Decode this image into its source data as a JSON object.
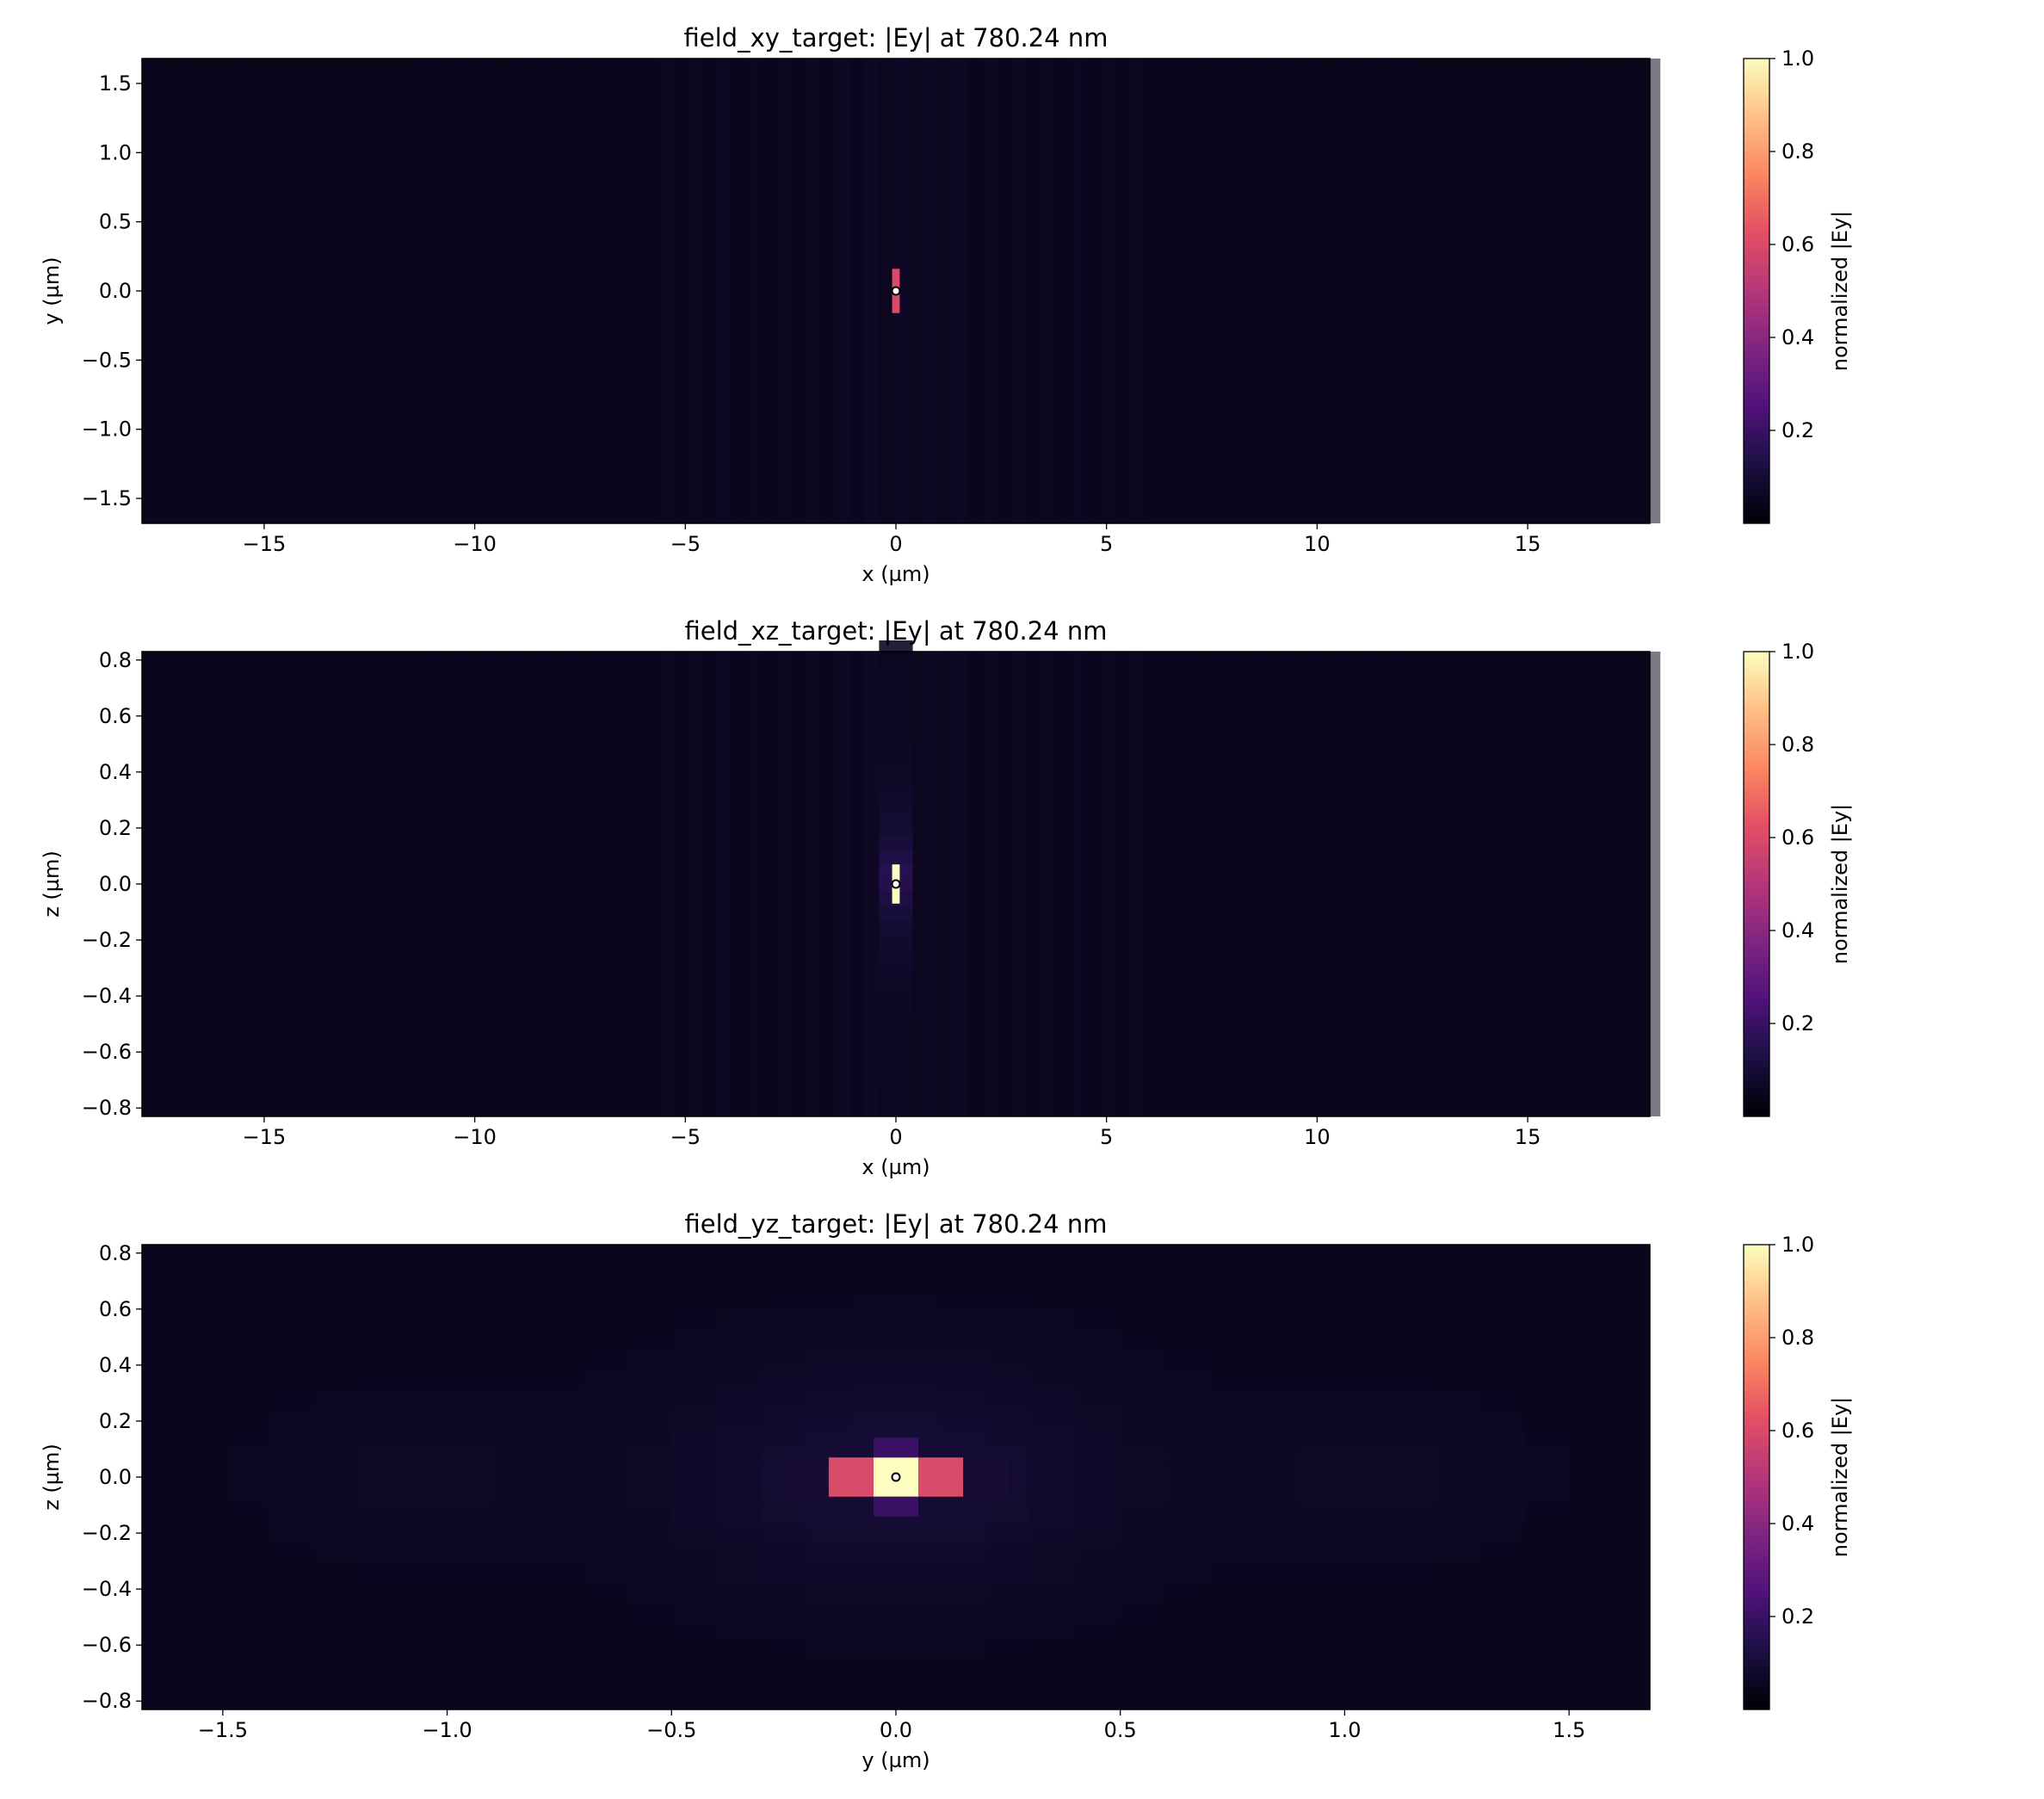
{
  "chart_data": [
    {
      "type": "heatmap",
      "title": "field_xy_target: |Ey| at 780.24 nm",
      "xlabel": "x (µm)",
      "ylabel": "y (µm)",
      "xlim": [
        -17.9,
        17.9
      ],
      "ylim": [
        -1.68,
        1.68
      ],
      "xticks": [
        -15,
        -10,
        -5,
        0,
        5,
        10,
        15
      ],
      "xtick_labels": [
        "−15",
        "−10",
        "−5",
        "0",
        "5",
        "10",
        "15"
      ],
      "yticks": [
        -1.5,
        -1.0,
        -0.5,
        0.0,
        0.5,
        1.0,
        1.5
      ],
      "ytick_labels": [
        "−1.5",
        "−1.0",
        "−0.5",
        "0.0",
        "0.5",
        "1.0",
        "1.5"
      ],
      "colorbar": {
        "label": "normalized |Ey|",
        "range": [
          0,
          1.0
        ],
        "ticks": [
          0.2,
          0.4,
          0.6,
          0.8,
          1.0
        ],
        "tick_labels": [
          "0.2",
          "0.4",
          "0.6",
          "0.8",
          "1.0"
        ]
      },
      "colormap": "magma",
      "marker": {
        "x": 0,
        "y": 0
      },
      "peak": {
        "x": 0,
        "y": 0,
        "value": 0.6,
        "x_halfwidth": 0.09,
        "y_halfwidth": 0.16
      },
      "background_level": 0.05
    },
    {
      "type": "heatmap",
      "title": "field_xz_target: |Ey| at 780.24 nm",
      "xlabel": "x (µm)",
      "ylabel": "z (µm)",
      "xlim": [
        -17.9,
        17.9
      ],
      "ylim": [
        -0.83,
        0.83
      ],
      "xticks": [
        -15,
        -10,
        -5,
        0,
        5,
        10,
        15
      ],
      "xtick_labels": [
        "−15",
        "−10",
        "−5",
        "0",
        "5",
        "10",
        "15"
      ],
      "yticks": [
        -0.8,
        -0.6,
        -0.4,
        -0.2,
        0.0,
        0.2,
        0.4,
        0.6,
        0.8
      ],
      "ytick_labels": [
        "−0.8",
        "−0.6",
        "−0.4",
        "−0.2",
        "0.0",
        "0.2",
        "0.4",
        "0.6",
        "0.8"
      ],
      "colorbar": {
        "label": "normalized |Ey|",
        "range": [
          0,
          1.0
        ],
        "ticks": [
          0.2,
          0.4,
          0.6,
          0.8,
          1.0
        ],
        "tick_labels": [
          "0.2",
          "0.4",
          "0.6",
          "0.8",
          "1.0"
        ]
      },
      "colormap": "magma",
      "marker": {
        "x": 0,
        "y": 0
      },
      "peak": {
        "x": 0,
        "y": 0,
        "value": 1.0,
        "x_halfwidth": 0.09,
        "y_halfwidth": 0.07
      },
      "background_level": 0.05
    },
    {
      "type": "heatmap",
      "title": "field_yz_target: |Ey| at 780.24 nm",
      "xlabel": "y (µm)",
      "ylabel": "z (µm)",
      "xlim": [
        -1.68,
        1.68
      ],
      "ylim": [
        -0.83,
        0.83
      ],
      "xticks": [
        -1.5,
        -1.0,
        -0.5,
        0.0,
        0.5,
        1.0,
        1.5
      ],
      "xtick_labels": [
        "−1.5",
        "−1.0",
        "−0.5",
        "0.0",
        "0.5",
        "1.0",
        "1.5"
      ],
      "yticks": [
        -0.8,
        -0.6,
        -0.4,
        -0.2,
        0.0,
        0.2,
        0.4,
        0.6,
        0.8
      ],
      "ytick_labels": [
        "−0.8",
        "−0.6",
        "−0.4",
        "−0.2",
        "0.0",
        "0.2",
        "0.4",
        "0.6",
        "0.8"
      ],
      "colorbar": {
        "label": "normalized |Ey|",
        "range": [
          0,
          1.0
        ],
        "ticks": [
          0.2,
          0.4,
          0.6,
          0.8,
          1.0
        ],
        "tick_labels": [
          "0.2",
          "0.4",
          "0.6",
          "0.8",
          "1.0"
        ]
      },
      "colormap": "magma",
      "marker": {
        "x": 0,
        "y": 0
      },
      "cells": [
        {
          "x": [
            -0.05,
            0.05
          ],
          "y": [
            -0.07,
            0.07
          ],
          "value": 1.0
        },
        {
          "x": [
            -0.15,
            -0.05
          ],
          "y": [
            -0.07,
            0.07
          ],
          "value": 0.6
        },
        {
          "x": [
            0.05,
            0.15
          ],
          "y": [
            -0.07,
            0.07
          ],
          "value": 0.6
        },
        {
          "x": [
            -0.25,
            -0.15
          ],
          "y": [
            -0.07,
            0.07
          ],
          "value": 0.1
        },
        {
          "x": [
            0.15,
            0.25
          ],
          "y": [
            -0.07,
            0.07
          ],
          "value": 0.1
        },
        {
          "x": [
            -0.05,
            0.05
          ],
          "y": [
            0.07,
            0.14
          ],
          "value": 0.2
        },
        {
          "x": [
            -0.05,
            0.05
          ],
          "y": [
            -0.14,
            -0.07
          ],
          "value": 0.2
        }
      ],
      "background_level": 0.05
    }
  ]
}
